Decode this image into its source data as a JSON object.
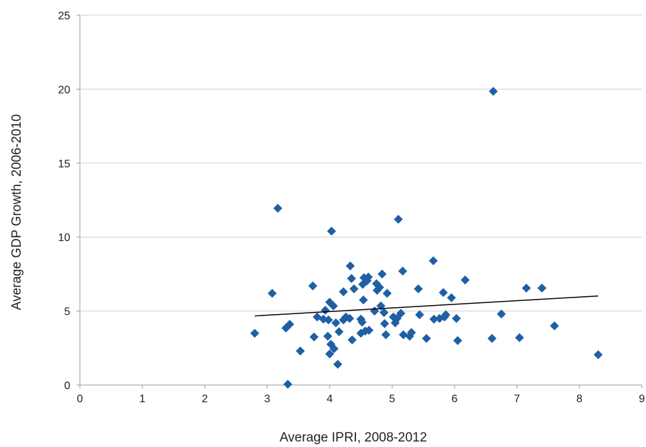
{
  "chart_data": {
    "type": "scatter",
    "title": "",
    "xlabel": "Average IPRI, 2008-2012",
    "ylabel": "Average GDP Growth, 2006-2010",
    "xlim": [
      0,
      9
    ],
    "ylim": [
      0,
      25
    ],
    "x_ticks": [
      "0",
      "1",
      "2",
      "3",
      "4",
      "5",
      "6",
      "7",
      "8",
      "9"
    ],
    "y_ticks": [
      "0",
      "5",
      "10",
      "15",
      "20",
      "25"
    ],
    "grid": "horizontal",
    "legend": "none",
    "marker": "diamond",
    "colors": {
      "marker": "#1F5FA6",
      "trendline": "#000000",
      "grid": "#cfcfcf",
      "axis": "#999999"
    },
    "trendline": {
      "x": [
        2.8,
        8.3
      ],
      "y": [
        4.67,
        6.02
      ]
    },
    "points": [
      {
        "x": 2.8,
        "y": 3.5
      },
      {
        "x": 3.08,
        "y": 6.2
      },
      {
        "x": 3.17,
        "y": 11.95
      },
      {
        "x": 3.3,
        "y": 3.85
      },
      {
        "x": 3.36,
        "y": 4.1
      },
      {
        "x": 3.33,
        "y": 0.05
      },
      {
        "x": 3.53,
        "y": 2.3
      },
      {
        "x": 3.73,
        "y": 6.7
      },
      {
        "x": 3.75,
        "y": 3.25
      },
      {
        "x": 3.8,
        "y": 4.6
      },
      {
        "x": 3.9,
        "y": 4.45
      },
      {
        "x": 3.93,
        "y": 5.05
      },
      {
        "x": 3.97,
        "y": 3.3
      },
      {
        "x": 3.98,
        "y": 4.4
      },
      {
        "x": 4.0,
        "y": 5.6
      },
      {
        "x": 4.02,
        "y": 2.75
      },
      {
        "x": 4.0,
        "y": 2.1
      },
      {
        "x": 4.03,
        "y": 10.4
      },
      {
        "x": 4.06,
        "y": 5.35
      },
      {
        "x": 4.07,
        "y": 2.45
      },
      {
        "x": 4.1,
        "y": 4.2
      },
      {
        "x": 4.13,
        "y": 1.4
      },
      {
        "x": 4.15,
        "y": 3.6
      },
      {
        "x": 4.22,
        "y": 4.4
      },
      {
        "x": 4.22,
        "y": 6.3
      },
      {
        "x": 4.26,
        "y": 4.6
      },
      {
        "x": 4.32,
        "y": 4.5
      },
      {
        "x": 4.33,
        "y": 8.05
      },
      {
        "x": 4.35,
        "y": 7.2
      },
      {
        "x": 4.36,
        "y": 3.05
      },
      {
        "x": 4.39,
        "y": 6.5
      },
      {
        "x": 4.5,
        "y": 4.45
      },
      {
        "x": 4.5,
        "y": 3.5
      },
      {
        "x": 4.53,
        "y": 6.8
      },
      {
        "x": 4.52,
        "y": 4.25
      },
      {
        "x": 4.54,
        "y": 5.75
      },
      {
        "x": 4.55,
        "y": 7.25
      },
      {
        "x": 4.57,
        "y": 3.65
      },
      {
        "x": 4.6,
        "y": 7.05
      },
      {
        "x": 4.62,
        "y": 7.3
      },
      {
        "x": 4.63,
        "y": 3.7
      },
      {
        "x": 4.72,
        "y": 5.0
      },
      {
        "x": 4.75,
        "y": 6.85
      },
      {
        "x": 4.76,
        "y": 6.4
      },
      {
        "x": 4.8,
        "y": 6.6
      },
      {
        "x": 4.82,
        "y": 5.35
      },
      {
        "x": 4.84,
        "y": 7.5
      },
      {
        "x": 4.87,
        "y": 4.9
      },
      {
        "x": 4.88,
        "y": 4.15
      },
      {
        "x": 4.9,
        "y": 3.4
      },
      {
        "x": 4.92,
        "y": 6.2
      },
      {
        "x": 5.02,
        "y": 4.6
      },
      {
        "x": 5.05,
        "y": 4.2
      },
      {
        "x": 5.08,
        "y": 4.5
      },
      {
        "x": 5.1,
        "y": 11.2
      },
      {
        "x": 5.14,
        "y": 4.85
      },
      {
        "x": 5.17,
        "y": 7.7
      },
      {
        "x": 5.18,
        "y": 3.4
      },
      {
        "x": 5.28,
        "y": 3.3
      },
      {
        "x": 5.31,
        "y": 3.55
      },
      {
        "x": 5.42,
        "y": 6.5
      },
      {
        "x": 5.44,
        "y": 4.75
      },
      {
        "x": 5.55,
        "y": 3.15
      },
      {
        "x": 5.66,
        "y": 8.4
      },
      {
        "x": 5.67,
        "y": 4.45
      },
      {
        "x": 5.76,
        "y": 4.5
      },
      {
        "x": 5.82,
        "y": 6.25
      },
      {
        "x": 5.84,
        "y": 4.6
      },
      {
        "x": 5.86,
        "y": 4.75
      },
      {
        "x": 5.95,
        "y": 5.9
      },
      {
        "x": 6.03,
        "y": 4.5
      },
      {
        "x": 6.05,
        "y": 3.0
      },
      {
        "x": 6.17,
        "y": 7.1
      },
      {
        "x": 6.6,
        "y": 3.15
      },
      {
        "x": 6.62,
        "y": 19.85
      },
      {
        "x": 6.75,
        "y": 4.8
      },
      {
        "x": 7.04,
        "y": 3.2
      },
      {
        "x": 7.15,
        "y": 6.55
      },
      {
        "x": 7.4,
        "y": 6.55
      },
      {
        "x": 7.6,
        "y": 4.0
      },
      {
        "x": 8.3,
        "y": 2.05
      }
    ]
  }
}
